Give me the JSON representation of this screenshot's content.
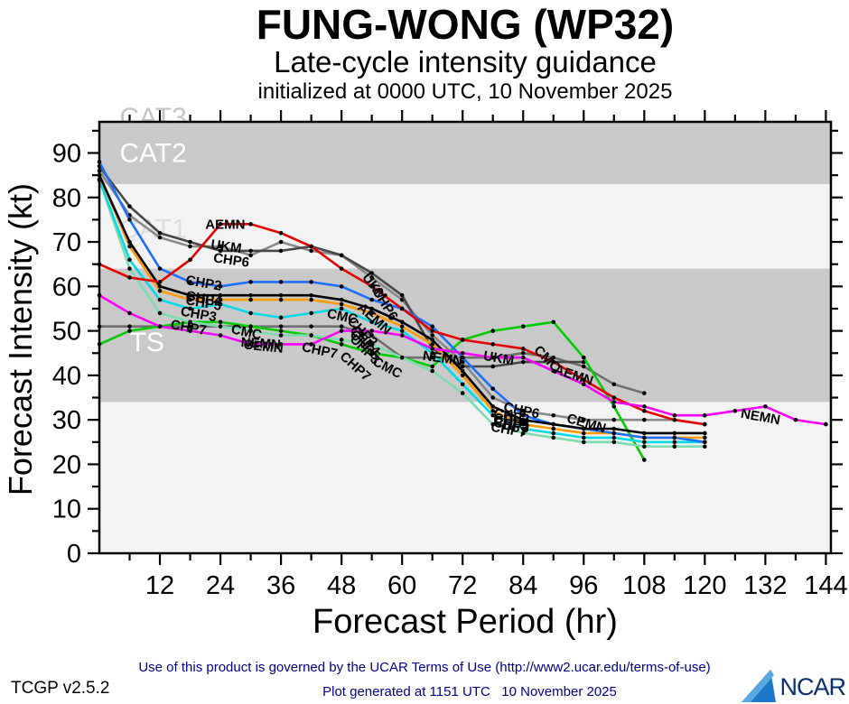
{
  "title": "FUNG-WONG (WP32)",
  "subtitle": "Late-cycle intensity guidance",
  "init_line": "initialized at 0000 UTC, 10 November 2025",
  "footer": {
    "terms": "Use of this product is governed by the UCAR Terms of Use (http://www2.ucar.edu/terms-of-use)",
    "version": "TCGP v2.5.2",
    "generated": "Plot generated at 1151 UTC   10 November 2025",
    "logo_text": "NCAR",
    "logo_color": "#1e78c8",
    "text_color": "#00008b"
  },
  "chart_data": {
    "type": "line",
    "title": "FUNG-WONG (WP32) late-cycle intensity guidance",
    "xlabel": "Forecast Period (hr)",
    "ylabel": "Forecast Intensity (kt)",
    "xlim": [
      0,
      145
    ],
    "ylim": [
      0,
      97
    ],
    "x_ticks_major": [
      12,
      24,
      36,
      48,
      60,
      72,
      84,
      96,
      108,
      120,
      132,
      144
    ],
    "x_tick_minor_step": 6,
    "y_ticks_major": [
      0,
      10,
      20,
      30,
      40,
      50,
      60,
      70,
      80,
      90
    ],
    "y_tick_minor_step": 5,
    "grid": false,
    "legend": "none",
    "bands": [
      {
        "label": "CAT3",
        "from": 96,
        "to": 97,
        "fill": "#c9c9c9",
        "label_color": "#c4c4c4",
        "label_kt": 98,
        "label_hr": 4
      },
      {
        "label": "CAT2",
        "from": 83,
        "to": 96,
        "fill": "#c9c9c9",
        "label_color": "#ffffff",
        "label_kt": 90,
        "label_hr": 4
      },
      {
        "label": "CAT1",
        "from": 64,
        "to": 83,
        "fill": "#f3f3f3",
        "label_color": "#dddddd",
        "label_kt": 73,
        "label_hr": 4
      },
      {
        "label": "TS",
        "from": 34,
        "to": 64,
        "fill": "#c9c9c9",
        "label_color": "#ffffff",
        "label_kt": 47.5,
        "label_hr": 6
      },
      {
        "label": "",
        "from": 0,
        "to": 34,
        "fill": "#f3f3f3",
        "label_color": "#ffffff",
        "label_kt": 10,
        "label_hr": 4
      }
    ],
    "series": [
      {
        "name": "CMC",
        "color": "#6f6f6f",
        "points": [
          [
            0,
            51
          ],
          [
            12,
            51
          ],
          [
            24,
            51
          ],
          [
            36,
            51
          ],
          [
            48,
            51
          ],
          [
            54,
            49
          ],
          [
            60,
            44
          ],
          [
            66,
            44
          ],
          [
            72,
            44
          ],
          [
            78,
            44
          ],
          [
            84,
            45
          ],
          [
            90,
            44
          ],
          [
            96,
            42
          ],
          [
            102,
            38
          ],
          [
            108,
            36
          ]
        ]
      },
      {
        "name": "CHP6",
        "color": "#8a8a8a",
        "points": [
          [
            0,
            86
          ],
          [
            6,
            76
          ],
          [
            12,
            71
          ],
          [
            18,
            69
          ],
          [
            24,
            69
          ],
          [
            30,
            67
          ],
          [
            36,
            70
          ],
          [
            42,
            68
          ],
          [
            48,
            67
          ],
          [
            54,
            62
          ],
          [
            60,
            57
          ],
          [
            66,
            49
          ],
          [
            72,
            43
          ],
          [
            78,
            35
          ],
          [
            84,
            32
          ],
          [
            90,
            31
          ],
          [
            96,
            30
          ],
          [
            102,
            30
          ],
          [
            108,
            30
          ],
          [
            114,
            30
          ],
          [
            120,
            29
          ]
        ]
      },
      {
        "name": "UKM",
        "color": "#474747",
        "points": [
          [
            0,
            87
          ],
          [
            6,
            78
          ],
          [
            12,
            72
          ],
          [
            18,
            70
          ],
          [
            24,
            68
          ],
          [
            30,
            68
          ],
          [
            36,
            68
          ],
          [
            42,
            69
          ],
          [
            48,
            67
          ],
          [
            54,
            63
          ],
          [
            60,
            58
          ],
          [
            66,
            46
          ],
          [
            72,
            42
          ],
          [
            78,
            42
          ],
          [
            84,
            43
          ],
          [
            90,
            43
          ],
          [
            96,
            43
          ]
        ]
      },
      {
        "name": "CEMN",
        "color": "#00cc00",
        "points": [
          [
            0,
            47
          ],
          [
            6,
            50
          ],
          [
            12,
            51
          ],
          [
            18,
            52
          ],
          [
            24,
            52
          ],
          [
            30,
            51
          ],
          [
            36,
            50
          ],
          [
            42,
            49
          ],
          [
            48,
            47
          ],
          [
            54,
            45
          ],
          [
            60,
            44
          ],
          [
            66,
            42
          ],
          [
            72,
            48
          ],
          [
            78,
            50
          ],
          [
            84,
            51
          ],
          [
            90,
            52
          ],
          [
            96,
            44
          ],
          [
            102,
            33
          ],
          [
            108,
            21
          ]
        ]
      },
      {
        "name": "CHP7",
        "color": "#7edbb0",
        "points": [
          [
            0,
            84
          ],
          [
            6,
            64
          ],
          [
            12,
            54
          ],
          [
            18,
            52
          ],
          [
            24,
            51
          ],
          [
            30,
            50
          ],
          [
            36,
            49
          ],
          [
            42,
            49
          ],
          [
            48,
            48
          ],
          [
            54,
            47
          ],
          [
            60,
            44
          ],
          [
            66,
            41
          ],
          [
            72,
            36
          ],
          [
            78,
            29
          ],
          [
            84,
            27
          ],
          [
            90,
            26
          ],
          [
            96,
            25
          ],
          [
            102,
            25
          ],
          [
            108,
            24
          ],
          [
            114,
            24
          ],
          [
            120,
            24
          ]
        ]
      },
      {
        "name": "CHP3",
        "color": "#00dbe6",
        "points": [
          [
            0,
            84
          ],
          [
            6,
            66
          ],
          [
            12,
            57
          ],
          [
            18,
            55
          ],
          [
            24,
            56
          ],
          [
            30,
            54
          ],
          [
            36,
            53
          ],
          [
            42,
            54
          ],
          [
            48,
            55
          ],
          [
            54,
            52
          ],
          [
            60,
            50
          ],
          [
            66,
            45
          ],
          [
            72,
            38
          ],
          [
            78,
            31
          ],
          [
            84,
            28
          ],
          [
            90,
            27
          ],
          [
            96,
            26
          ],
          [
            102,
            26
          ],
          [
            108,
            25
          ],
          [
            114,
            25
          ],
          [
            120,
            25
          ]
        ]
      },
      {
        "name": "CHP5",
        "color": "#ff9b00",
        "points": [
          [
            0,
            85
          ],
          [
            6,
            69
          ],
          [
            12,
            59
          ],
          [
            18,
            57
          ],
          [
            24,
            57
          ],
          [
            30,
            57
          ],
          [
            36,
            57
          ],
          [
            42,
            57
          ],
          [
            48,
            56
          ],
          [
            54,
            54
          ],
          [
            60,
            51
          ],
          [
            66,
            47
          ],
          [
            72,
            40
          ],
          [
            78,
            32
          ],
          [
            84,
            29
          ],
          [
            90,
            28
          ],
          [
            96,
            27
          ],
          [
            102,
            27
          ],
          [
            108,
            26
          ],
          [
            114,
            26
          ],
          [
            120,
            26
          ]
        ]
      },
      {
        "name": "CHP2",
        "color": "#1d6eff",
        "points": [
          [
            0,
            88
          ],
          [
            6,
            75
          ],
          [
            12,
            64
          ],
          [
            18,
            61
          ],
          [
            24,
            60
          ],
          [
            30,
            61
          ],
          [
            36,
            61
          ],
          [
            42,
            61
          ],
          [
            48,
            60
          ],
          [
            54,
            57
          ],
          [
            60,
            55
          ],
          [
            66,
            51
          ],
          [
            72,
            44
          ],
          [
            78,
            37
          ],
          [
            84,
            31
          ],
          [
            90,
            29
          ],
          [
            96,
            28
          ],
          [
            102,
            27
          ],
          [
            108,
            26
          ],
          [
            114,
            26
          ],
          [
            120,
            25
          ]
        ]
      },
      {
        "name": "CHP4",
        "color": "#000000",
        "points": [
          [
            0,
            85
          ],
          [
            6,
            70
          ],
          [
            12,
            60
          ],
          [
            18,
            58
          ],
          [
            24,
            58
          ],
          [
            30,
            58
          ],
          [
            36,
            58
          ],
          [
            42,
            58
          ],
          [
            48,
            57
          ],
          [
            54,
            55
          ],
          [
            60,
            52
          ],
          [
            66,
            48
          ],
          [
            72,
            41
          ],
          [
            78,
            33
          ],
          [
            84,
            30
          ],
          [
            90,
            29
          ],
          [
            96,
            28
          ],
          [
            102,
            28
          ],
          [
            108,
            27
          ],
          [
            114,
            27
          ],
          [
            120,
            27
          ]
        ]
      },
      {
        "name": "AEMN",
        "color": "#e60000",
        "points": [
          [
            0,
            65
          ],
          [
            6,
            62
          ],
          [
            12,
            61
          ],
          [
            18,
            66
          ],
          [
            24,
            74
          ],
          [
            30,
            74
          ],
          [
            36,
            72
          ],
          [
            42,
            69
          ],
          [
            48,
            64
          ],
          [
            54,
            60
          ],
          [
            60,
            55
          ],
          [
            66,
            50
          ],
          [
            72,
            48
          ],
          [
            78,
            47
          ],
          [
            84,
            46
          ],
          [
            90,
            43
          ],
          [
            96,
            39
          ],
          [
            102,
            35
          ],
          [
            108,
            32
          ],
          [
            114,
            30
          ],
          [
            120,
            29
          ]
        ]
      },
      {
        "name": "NEMN",
        "color": "#ff00ff",
        "points": [
          [
            0,
            58
          ],
          [
            6,
            54
          ],
          [
            12,
            51
          ],
          [
            18,
            50
          ],
          [
            24,
            49
          ],
          [
            30,
            47
          ],
          [
            36,
            47
          ],
          [
            42,
            47
          ],
          [
            48,
            50
          ],
          [
            54,
            50
          ],
          [
            60,
            49
          ],
          [
            66,
            46
          ],
          [
            72,
            45
          ],
          [
            78,
            44
          ],
          [
            84,
            44
          ],
          [
            90,
            41
          ],
          [
            96,
            38
          ],
          [
            102,
            34
          ],
          [
            108,
            33
          ],
          [
            114,
            31
          ],
          [
            120,
            31
          ],
          [
            126,
            32
          ],
          [
            132,
            33
          ],
          [
            138,
            30
          ],
          [
            144,
            29
          ]
        ]
      }
    ],
    "line_labels": [
      {
        "text": "AEMN",
        "hr": 21,
        "kt": 73,
        "deg": 0
      },
      {
        "text": "AEMN",
        "hr": 51,
        "kt": 55,
        "deg": 42
      },
      {
        "text": "AEMN",
        "hr": 90,
        "kt": 40.5,
        "deg": 18
      },
      {
        "text": "UKM",
        "hr": 22,
        "kt": 68.5,
        "deg": 8
      },
      {
        "text": "UKM",
        "hr": 52,
        "kt": 62,
        "deg": 52
      },
      {
        "text": "UKM",
        "hr": 76,
        "kt": 43.5,
        "deg": 10
      },
      {
        "text": "CHP6",
        "hr": 22.5,
        "kt": 65.5,
        "deg": 8
      },
      {
        "text": "CHP6",
        "hr": 54,
        "kt": 59,
        "deg": 58
      },
      {
        "text": "CHP6",
        "hr": 80,
        "kt": 32,
        "deg": 12
      },
      {
        "text": "CHP2",
        "hr": 17,
        "kt": 60.5,
        "deg": 10
      },
      {
        "text": "CHP2",
        "hr": 49,
        "kt": 52,
        "deg": 45
      },
      {
        "text": "CHP2",
        "hr": 78,
        "kt": 30.5,
        "deg": 10
      },
      {
        "text": "CHP4",
        "hr": 17,
        "kt": 57,
        "deg": 10
      },
      {
        "text": "CHP4",
        "hr": 49.5,
        "kt": 50,
        "deg": 45
      },
      {
        "text": "CHP4",
        "hr": 78,
        "kt": 29.5,
        "deg": 10
      },
      {
        "text": "CHP5",
        "hr": 17,
        "kt": 56,
        "deg": 10
      },
      {
        "text": "CHP5",
        "hr": 49.5,
        "kt": 49,
        "deg": 45
      },
      {
        "text": "CHP5",
        "hr": 78,
        "kt": 29,
        "deg": 10
      },
      {
        "text": "CHP3",
        "hr": 16,
        "kt": 53.5,
        "deg": 10
      },
      {
        "text": "CHP3",
        "hr": 49.5,
        "kt": 48,
        "deg": 45
      },
      {
        "text": "CHP3",
        "hr": 78,
        "kt": 28.5,
        "deg": 10
      },
      {
        "text": "CHP7",
        "hr": 14,
        "kt": 50.5,
        "deg": 10
      },
      {
        "text": "CHP7",
        "hr": 40,
        "kt": 45.5,
        "deg": 12
      },
      {
        "text": "CHP7",
        "hr": 47.5,
        "kt": 44,
        "deg": 42
      },
      {
        "text": "CHP7",
        "hr": 77.5,
        "kt": 27.5,
        "deg": 10
      },
      {
        "text": "CMC",
        "hr": 26,
        "kt": 49.5,
        "deg": 12
      },
      {
        "text": "CMC",
        "hr": 45,
        "kt": 53,
        "deg": 12
      },
      {
        "text": "CMC",
        "hr": 54,
        "kt": 42.5,
        "deg": 28
      },
      {
        "text": "CMC",
        "hr": 86,
        "kt": 45.5,
        "deg": 45
      },
      {
        "text": "NEMN",
        "hr": 28,
        "kt": 46.5,
        "deg": 4
      },
      {
        "text": "NEMN",
        "hr": 64,
        "kt": 43.5,
        "deg": 8
      },
      {
        "text": "NEMN",
        "hr": 127,
        "kt": 30.5,
        "deg": 10
      },
      {
        "text": "CEMN",
        "hr": 28.5,
        "kt": 46,
        "deg": 6
      },
      {
        "text": "CEMN",
        "hr": 92.5,
        "kt": 29.5,
        "deg": 16
      }
    ]
  }
}
